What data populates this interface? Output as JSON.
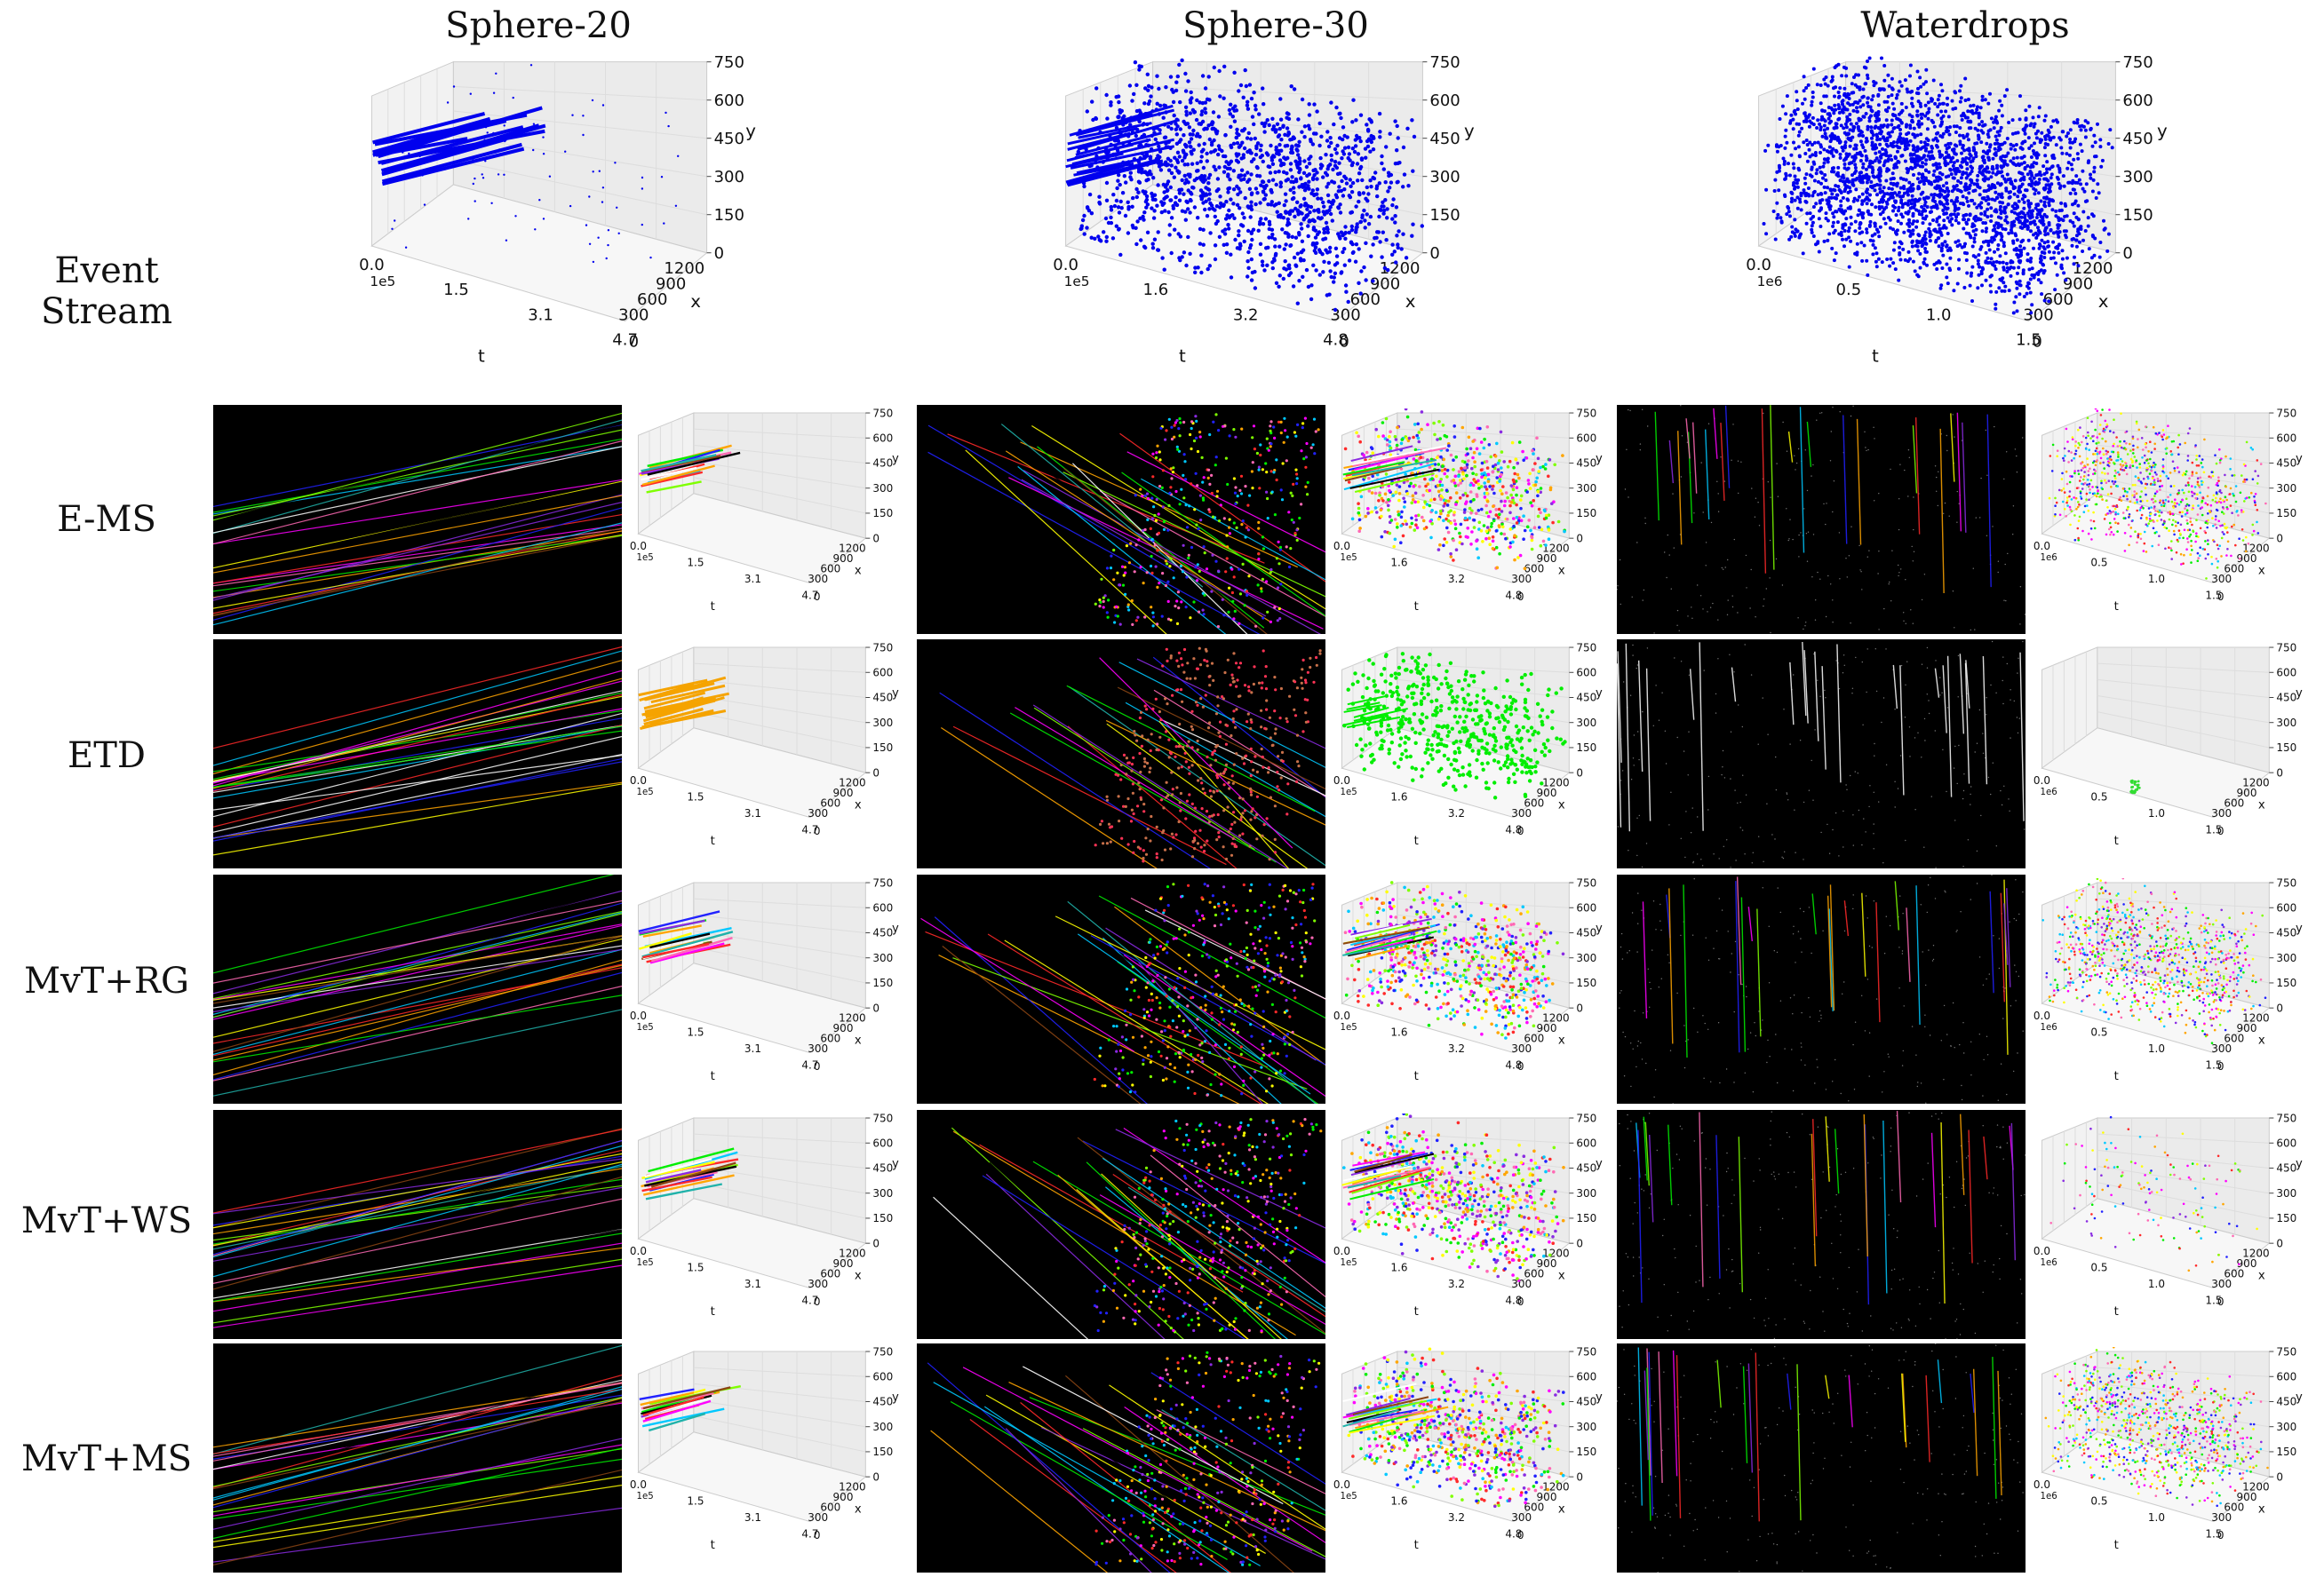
{
  "columns": [
    "Sphere-20",
    "Sphere-30",
    "Waterdrops"
  ],
  "rows": [
    "Event Stream",
    "E-MS",
    "ETD",
    "MvT+RG",
    "MvT+WS",
    "MvT+MS"
  ],
  "axes": {
    "t_label": "t",
    "x_label": "x",
    "y_label": "y",
    "y_ticks": [
      "0",
      "150",
      "300",
      "450",
      "600",
      "750"
    ],
    "x_ticks": [
      "300",
      "600",
      "900",
      "1200"
    ],
    "x_zero": "0",
    "t_sets": [
      {
        "ticks": [
          "0.0",
          "1.5",
          "3.1",
          "4.7"
        ],
        "scale": "1e5"
      },
      {
        "ticks": [
          "0.0",
          "1.6",
          "3.2",
          "4.8"
        ],
        "scale": "1e5"
      },
      {
        "ticks": [
          "0.0",
          "0.5",
          "1.0",
          "1.5"
        ],
        "scale": "1e6"
      }
    ]
  },
  "colors": {
    "event_stream": "#0000ee",
    "etd_sphere20": "#f5a300",
    "etd_sphere30": "#00ee00",
    "etd_waterdrops": "#33dd33",
    "palette": [
      "#ff2a2a",
      "#ffa500",
      "#00ee00",
      "#2222ff",
      "#ff00ff",
      "#00c8ff",
      "#ffff00",
      "#8a2be2",
      "#ff69b4",
      "#7fff00",
      "#000000",
      "#8b4513",
      "#20b2aa",
      "#ffffff"
    ]
  }
}
